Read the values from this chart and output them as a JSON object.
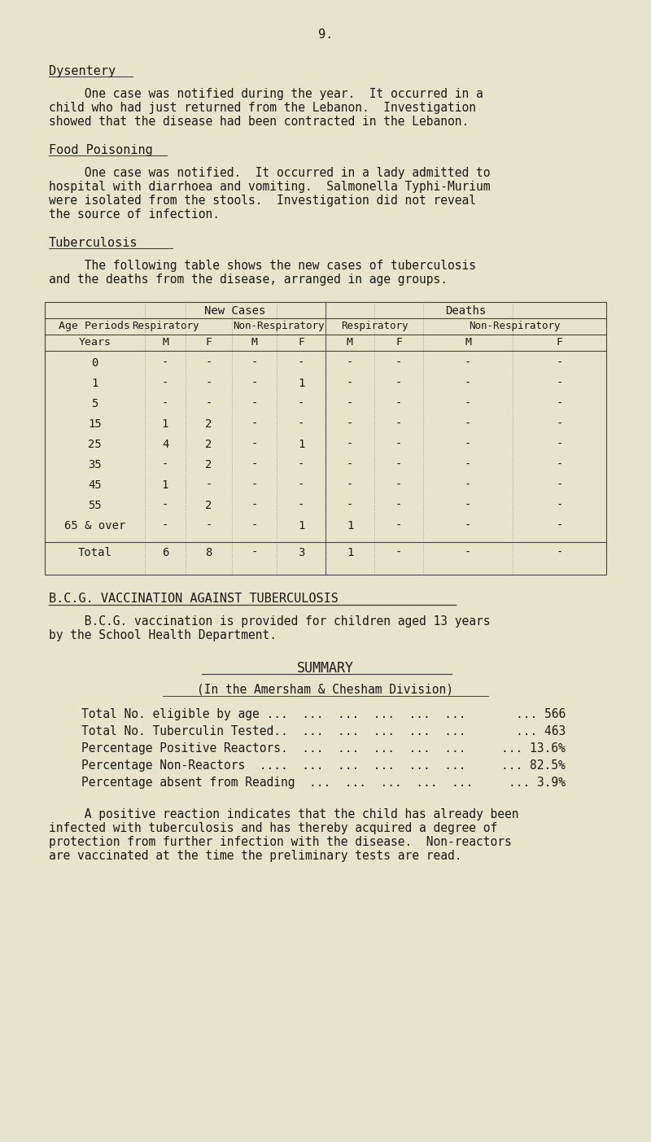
{
  "bg_color": "#e8e4cc",
  "text_color": "#1a1a1a",
  "page_number": "9.",
  "section1_heading": "Dysentery",
  "section1_body": [
    "     One case was notified during the year.  It occurred in a",
    "child who had just returned from the Lebanon.  Investigation",
    "showed that the disease had been contracted in the Lebanon."
  ],
  "section2_heading": "Food Poisoning",
  "section2_body": [
    "     One case was notified.  It occurred in a lady admitted to",
    "hospital with diarrhoea and vomiting.  Salmonella Typhi-Murium",
    "were isolated from the stools.  Investigation did not reveal",
    "the source of infection."
  ],
  "section3_heading": "Tuberculosis",
  "section3_body": [
    "     The following table shows the new cases of tuberculosis",
    "and the deaths from the disease, arranged in age groups."
  ],
  "table_rows": [
    [
      "0",
      "-",
      "-",
      "-",
      "-",
      "-",
      "-",
      "-",
      "-"
    ],
    [
      "1",
      "-",
      "-",
      "-",
      "1",
      "-",
      "-",
      "-",
      "-"
    ],
    [
      "5",
      "-",
      "-",
      "-",
      "-",
      "-",
      "-",
      "-",
      "-"
    ],
    [
      "15",
      "1",
      "2",
      "-",
      "-",
      "-",
      "-",
      "-",
      "-"
    ],
    [
      "25",
      "4",
      "2",
      "-",
      "1",
      "-",
      "-",
      "-",
      "-"
    ],
    [
      "35",
      "-",
      "2",
      "-",
      "-",
      "-",
      "-",
      "-",
      "-"
    ],
    [
      "45",
      "1",
      "-",
      "-",
      "-",
      "-",
      "-",
      "-",
      "-"
    ],
    [
      "55",
      "-",
      "2",
      "-",
      "-",
      "-",
      "-",
      "-",
      "-"
    ],
    [
      "65 & over",
      "-",
      "-",
      "-",
      "1",
      "1",
      "-",
      "-",
      "-"
    ]
  ],
  "table_total": [
    "Total",
    "6",
    "8",
    "-",
    "3",
    "1",
    "-",
    "-",
    "-"
  ],
  "section4_heading": "B.C.G. VACCINATION AGAINST TUBERCULOSIS",
  "section4_body": [
    "     B.C.G. vaccination is provided for children aged 13 years",
    "by the School Health Department."
  ],
  "section5_heading": "SUMMARY",
  "section5_subheading": "(In the Amersham & Chesham Division)",
  "summary_labels": [
    "Total No. eligible by age ...  ...  ...  ...  ...  ...",
    "Total No. Tuberculin Tested..  ...  ...  ...  ...  ...",
    "Percentage Positive Reactors.  ...  ...  ...  ...  ...",
    "Percentage Non-Reactors  ....  ...  ...  ...  ...  ...",
    "Percentage absent from Reading  ...  ...  ...  ...  ..."
  ],
  "summary_values": [
    "... 566",
    "... 463",
    "... 13.6%",
    "... 82.5%",
    "... 3.9%"
  ],
  "section6_body": [
    "     A positive reaction indicates that the child has already been",
    "infected with tuberculosis and has thereby acquired a degree of",
    "protection from further infection with the disease.  Non-reactors",
    "are vaccinated at the time the preliminary tests are read."
  ]
}
